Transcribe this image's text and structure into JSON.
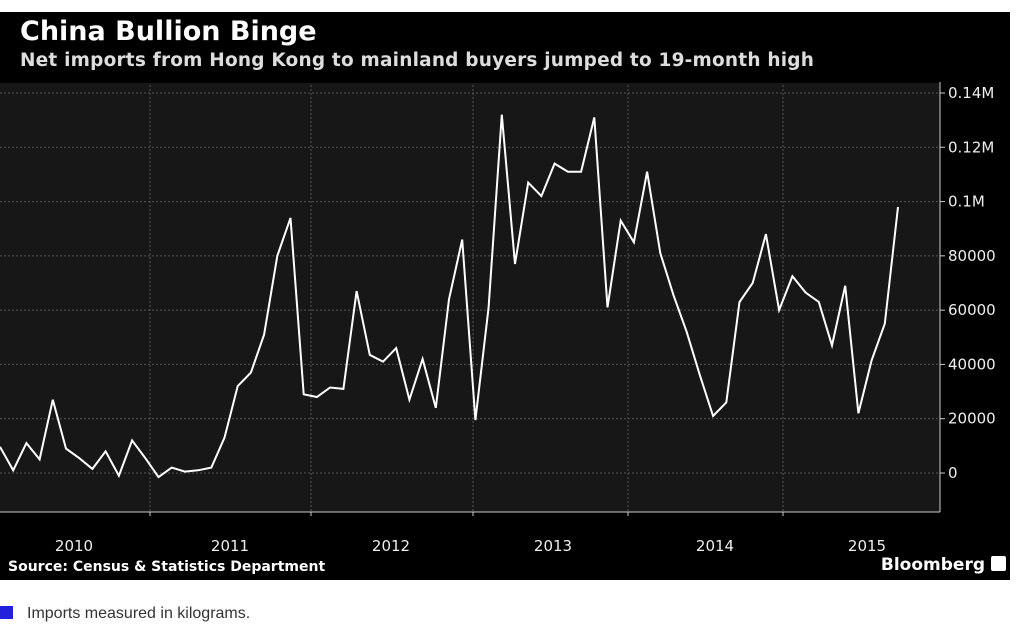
{
  "title": "China Bullion Binge",
  "subtitle": "Net imports from Hong Kong to mainland buyers jumped to 19-month high",
  "source": "Source: Census & Statistics Department",
  "brand": "Bloomberg",
  "note": "Imports measured in kilograms.",
  "colors": {
    "background": "#000000",
    "plot": "#171717",
    "line": "#ffffff",
    "note_swatch": "#2222dd"
  },
  "chart_data": {
    "type": "line",
    "title": "China Bullion Binge",
    "subtitle": "Net imports from Hong Kong to mainland buyers jumped to 19-month high",
    "ylabel": "",
    "xlabel": "",
    "ylim": [
      -15000,
      145000
    ],
    "yticks": [
      0,
      20000,
      40000,
      60000,
      80000,
      100000,
      120000,
      140000
    ],
    "ytick_labels": [
      "0",
      "20000",
      "40000",
      "60000",
      "80000",
      "0.1M",
      "0.12M",
      "0.14M"
    ],
    "xtick_labels": [
      "2010",
      "2011",
      "2012",
      "2013",
      "2014",
      "2015"
    ],
    "grid": true,
    "series": [
      {
        "name": "Net imports",
        "values": [
          9600,
          1000,
          11000,
          5000,
          27000,
          9000,
          5500,
          1500,
          8000,
          -1000,
          12000,
          5500,
          -1500,
          2000,
          500,
          1000,
          2000,
          13000,
          32000,
          37000,
          51000,
          80000,
          94000,
          29000,
          28000,
          31500,
          31000,
          67000,
          43500,
          41000,
          46000,
          27000,
          42000,
          24000,
          64000,
          86000,
          19500,
          61000,
          132000,
          77000,
          107000,
          102000,
          114000,
          111000,
          111000,
          131000,
          61000,
          93000,
          85000,
          111000,
          81000,
          65500,
          52000,
          36000,
          21000,
          26000,
          63000,
          70000,
          88000,
          60000,
          72500,
          66500,
          63000,
          47000,
          69000,
          22000,
          41500,
          55000,
          98000
        ]
      }
    ]
  }
}
